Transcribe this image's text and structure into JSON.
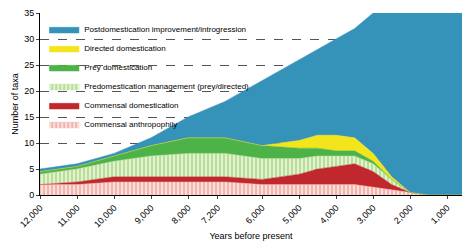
{
  "chart_data": {
    "type": "area",
    "stacked": true,
    "grid": true,
    "legend": "top-left",
    "x_label": "Years before present",
    "y_label": "Number of taxa",
    "x": [
      12000,
      11000,
      10000,
      9000,
      8000,
      7000,
      6000,
      5000,
      4500,
      4000,
      3500,
      3000,
      2500,
      2000,
      1500,
      1000,
      600
    ],
    "xlim": [
      12000,
      600
    ],
    "xticks": [
      {
        "value": 12000,
        "label": "12,000"
      },
      {
        "value": 11000,
        "label": "11,000"
      },
      {
        "value": 10000,
        "label": "10,000"
      },
      {
        "value": 9000,
        "label": "9,000"
      },
      {
        "value": 8000,
        "label": "8,000"
      },
      {
        "value": 7200,
        "label": "7,200"
      },
      {
        "value": 6000,
        "label": "6,000"
      },
      {
        "value": 5000,
        "label": "5,000"
      },
      {
        "value": 4000,
        "label": "4,000"
      },
      {
        "value": 3000,
        "label": "3,000"
      },
      {
        "value": 2000,
        "label": "2,000"
      },
      {
        "value": 1000,
        "label": "1,000"
      }
    ],
    "ylim": [
      0,
      35
    ],
    "yticks": [
      0,
      5,
      10,
      15,
      20,
      25,
      30,
      35
    ],
    "series": [
      {
        "name": "Commensal anthropophily",
        "color": "#f4b3ab",
        "values": [
          2,
          2,
          2.5,
          2.5,
          2.5,
          2.5,
          2,
          2,
          2,
          2,
          2,
          1.5,
          1,
          0.5,
          0,
          0,
          0
        ]
      },
      {
        "name": "Commensal domestication",
        "color": "#c0282d",
        "values": [
          0,
          0.5,
          1,
          1,
          1,
          1,
          1,
          2,
          3,
          3.5,
          4,
          3,
          1,
          0,
          0,
          0,
          0
        ]
      },
      {
        "name": "Predomestication management (prey/directed)",
        "color": "#b9de95",
        "values": [
          2,
          2.5,
          3,
          4,
          4.5,
          4.5,
          4,
          3,
          2.5,
          2,
          1.5,
          1.5,
          1,
          0,
          0,
          0,
          0
        ]
      },
      {
        "name": "Prey domestication",
        "color": "#4db349",
        "values": [
          0.5,
          0.5,
          1,
          2,
          3,
          3,
          2.5,
          2,
          1.5,
          1,
          1,
          0.5,
          0,
          0,
          0,
          0,
          0
        ]
      },
      {
        "name": "Directed domestication",
        "color": "#f3e51b",
        "values": [
          0,
          0,
          0,
          0,
          0,
          0,
          0,
          1.5,
          2.5,
          3,
          2.5,
          1.5,
          0.5,
          0,
          0,
          0,
          0
        ]
      },
      {
        "name": "Postdomestication improvement/introgression",
        "color": "#3592b8",
        "values": [
          0.5,
          0.5,
          0.5,
          1.5,
          4,
          7,
          12.5,
          15.5,
          16.5,
          18.5,
          21,
          27,
          31.5,
          34.5,
          35,
          35,
          35
        ]
      }
    ]
  }
}
